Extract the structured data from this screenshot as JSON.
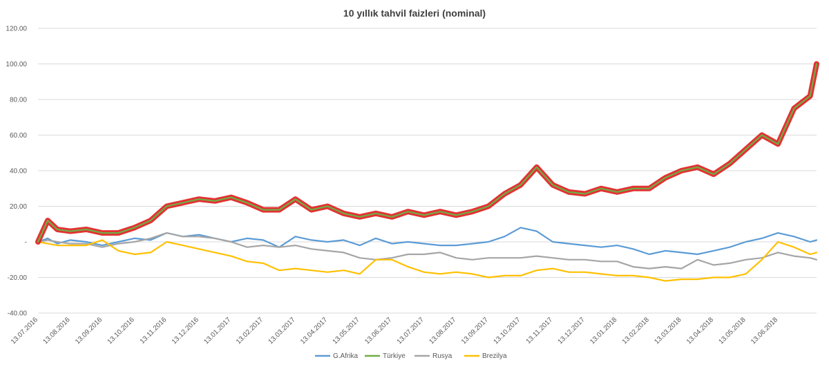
{
  "chart_data": {
    "type": "line",
    "title": "10 yıllık tahvil faizleri (nominal)",
    "xlabel": "",
    "ylabel": "",
    "ylim": [
      -40,
      120
    ],
    "y_ticks": [
      -40,
      -20,
      0,
      20,
      40,
      60,
      80,
      100,
      120
    ],
    "y_tick_labels": [
      "-40.00",
      "-20.00",
      "-",
      "20.00",
      "40.00",
      "60.00",
      "80.00",
      "100.00",
      "120.00"
    ],
    "x_tick_labels": [
      "13.07.2016",
      "13.08.2016",
      "13.09.2016",
      "13.10.2016",
      "13.11.2016",
      "13.12.2016",
      "13.01.2017",
      "13.02.2017",
      "13.03.2017",
      "13.04.2017",
      "13.05.2017",
      "13.06.2017",
      "13.07.2017",
      "13.08.2017",
      "13.09.2017",
      "13.10.2017",
      "13.11.2017",
      "13.12.2017",
      "13.01.2018",
      "13.02.2018",
      "13.03.2018",
      "13.04.2018",
      "13.05.2018",
      "13.06.2018"
    ],
    "x_range": [
      0,
      24.2
    ],
    "grid": true,
    "legend_position": "bottom",
    "series": [
      {
        "name": "G.Afrika",
        "color": "#5b9bd5",
        "x": [
          0,
          0.3,
          0.6,
          1,
          1.5,
          2,
          2.5,
          3,
          3.5,
          4,
          4.5,
          5,
          5.5,
          6,
          6.5,
          7,
          7.5,
          8,
          8.5,
          9,
          9.5,
          10,
          10.5,
          11,
          11.5,
          12,
          12.5,
          13,
          13.5,
          14,
          14.5,
          15,
          15.5,
          16,
          16.5,
          17,
          17.5,
          18,
          18.5,
          19,
          19.5,
          20,
          20.5,
          21,
          21.5,
          22,
          22.5,
          23,
          23.5,
          24,
          24.2
        ],
        "values": [
          0,
          2,
          -1,
          1,
          0,
          -2,
          0,
          2,
          1,
          5,
          3,
          4,
          2,
          0,
          2,
          1,
          -3,
          3,
          1,
          0,
          1,
          -2,
          2,
          -1,
          0,
          -1,
          -2,
          -2,
          -1,
          0,
          3,
          8,
          6,
          0,
          -1,
          -2,
          -3,
          -2,
          -4,
          -7,
          -5,
          -6,
          -7,
          -5,
          -3,
          0,
          2,
          5,
          3,
          0,
          1
        ]
      },
      {
        "name": "Türkiye",
        "color": "#70ad47",
        "highlight_color": "#e01c1c",
        "x": [
          0,
          0.3,
          0.6,
          1,
          1.5,
          2,
          2.5,
          3,
          3.5,
          4,
          4.5,
          5,
          5.5,
          6,
          6.5,
          7,
          7.5,
          8,
          8.5,
          9,
          9.5,
          10,
          10.5,
          11,
          11.5,
          12,
          12.5,
          13,
          13.5,
          14,
          14.5,
          15,
          15.5,
          16,
          16.5,
          17,
          17.5,
          18,
          18.5,
          19,
          19.5,
          20,
          20.5,
          21,
          21.5,
          22,
          22.5,
          23,
          23.5,
          24,
          24.2
        ],
        "values": [
          0,
          12,
          7,
          6,
          7,
          5,
          5,
          8,
          12,
          20,
          22,
          24,
          23,
          25,
          22,
          18,
          18,
          24,
          18,
          20,
          16,
          14,
          16,
          14,
          17,
          15,
          17,
          15,
          17,
          20,
          27,
          32,
          42,
          32,
          28,
          27,
          30,
          28,
          30,
          30,
          36,
          40,
          42,
          38,
          44,
          52,
          60,
          55,
          75,
          82,
          100
        ]
      },
      {
        "name": "Rusya",
        "color": "#a5a5a5",
        "x": [
          0,
          0.3,
          0.6,
          1,
          1.5,
          2,
          2.5,
          3,
          3.5,
          4,
          4.5,
          5,
          5.5,
          6,
          6.5,
          7,
          7.5,
          8,
          8.5,
          9,
          9.5,
          10,
          10.5,
          11,
          11.5,
          12,
          12.5,
          13,
          13.5,
          14,
          14.5,
          15,
          15.5,
          16,
          16.5,
          17,
          17.5,
          18,
          18.5,
          19,
          19.5,
          20,
          20.5,
          21,
          21.5,
          22,
          22.5,
          23,
          23.5,
          24,
          24.2
        ],
        "values": [
          0,
          1,
          0,
          -1,
          -1,
          -3,
          -1,
          0,
          2,
          5,
          3,
          3,
          2,
          0,
          -3,
          -2,
          -3,
          -2,
          -4,
          -5,
          -6,
          -9,
          -10,
          -9,
          -7,
          -7,
          -6,
          -9,
          -10,
          -9,
          -9,
          -9,
          -8,
          -9,
          -10,
          -10,
          -11,
          -11,
          -14,
          -15,
          -14,
          -15,
          -10,
          -13,
          -12,
          -10,
          -9,
          -6,
          -8,
          -9,
          -10
        ]
      },
      {
        "name": "Brezilya",
        "color": "#ffc000",
        "x": [
          0,
          0.3,
          0.6,
          1,
          1.5,
          2,
          2.5,
          3,
          3.5,
          4,
          4.5,
          5,
          5.5,
          6,
          6.5,
          7,
          7.5,
          8,
          8.5,
          9,
          9.5,
          10,
          10.5,
          11,
          11.5,
          12,
          12.5,
          13,
          13.5,
          14,
          14.5,
          15,
          15.5,
          16,
          16.5,
          17,
          17.5,
          18,
          18.5,
          19,
          19.5,
          20,
          20.5,
          21,
          21.5,
          22,
          22.5,
          23,
          23.5,
          24,
          24.2
        ],
        "values": [
          0,
          -1,
          -2,
          -2,
          -2,
          1,
          -5,
          -7,
          -6,
          0,
          -2,
          -4,
          -6,
          -8,
          -11,
          -12,
          -16,
          -15,
          -16,
          -17,
          -16,
          -18,
          -10,
          -10,
          -14,
          -17,
          -18,
          -17,
          -18,
          -20,
          -19,
          -19,
          -16,
          -15,
          -17,
          -17,
          -18,
          -19,
          -19,
          -20,
          -22,
          -21,
          -21,
          -20,
          -20,
          -18,
          -10,
          0,
          -3,
          -7,
          -6
        ]
      }
    ]
  }
}
